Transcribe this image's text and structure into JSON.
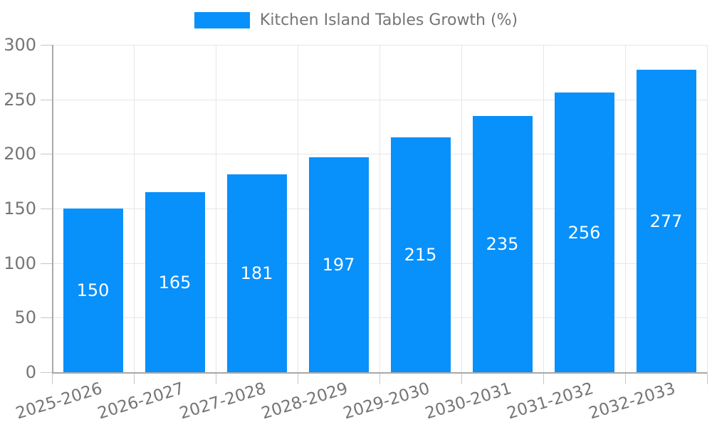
{
  "colors": {
    "bar": "#0890fb",
    "grid": "#e6e6e6",
    "axis": "#a8a8a8",
    "tick": "#c6c6c6",
    "text": "#757575",
    "value_label_text": "#ffffff",
    "background": "#ffffff"
  },
  "chart_data": {
    "type": "bar",
    "title": "",
    "xlabel": "",
    "ylabel": "",
    "legend": {
      "position": "top",
      "label": "Kitchen Island Tables Growth (%)"
    },
    "categories": [
      "2025-2026",
      "2026-2027",
      "2027-2028",
      "2028-2029",
      "2029-2030",
      "2030-2031",
      "2031-2032",
      "2032-2033"
    ],
    "series": [
      {
        "name": "Kitchen Island Tables Growth (%)",
        "color": "#0890fb",
        "values": [
          150,
          165,
          181,
          197,
          215,
          235,
          256,
          277
        ]
      }
    ],
    "ylim": [
      0,
      300
    ],
    "yticks": [
      0,
      50,
      100,
      150,
      200,
      250,
      300
    ],
    "grid": true,
    "value_labels": {
      "show": true,
      "position": "center",
      "color": "#ffffff"
    }
  }
}
